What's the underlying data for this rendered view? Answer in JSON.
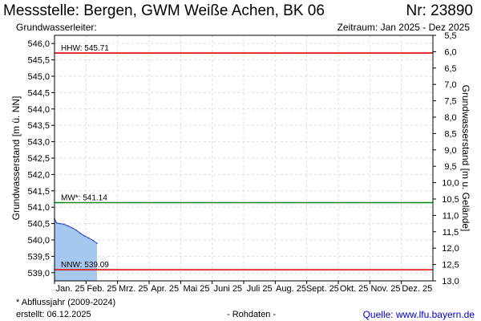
{
  "header": {
    "title": "Messstelle: Bergen, GWM Weiße Achen, BK 06",
    "number": "Nr: 23890",
    "subtitle_left": "Grundwasserleiter:",
    "subtitle_right": "Zeitraum: Jan 2025 - Dez 2025"
  },
  "footer": {
    "footnote": "* Abflussjahr (2009-2024)",
    "created": "erstellt:  06.12.2025",
    "raw_data": "- Rohdaten -",
    "source": "Quelle: www.lfu.bayern.de"
  },
  "colors": {
    "hhw": "#dd0000",
    "mw": "#008800",
    "nnw": "#dd0000",
    "series_line": "#2244cc",
    "series_fill": "#a7c8ee",
    "grid": "#dddddd"
  },
  "chart_data": {
    "type": "area",
    "ylabel": "Grundwasserstand [m ü. NN]",
    "ylabel_right": "Grundwasserstand [m u. Gelände]",
    "ylim": [
      538.75,
      546.25
    ],
    "ylim_right": [
      13.0,
      5.5
    ],
    "y_ticks": [
      "546,0",
      "545,5",
      "545,0",
      "544,5",
      "544,0",
      "543,5",
      "543,0",
      "542,5",
      "542,0",
      "541,5",
      "541,0",
      "540,5",
      "540,0",
      "539,5",
      "539,0"
    ],
    "y_ticks_right": [
      "5,5",
      "6,0",
      "6,5",
      "7,0",
      "7,5",
      "8,0",
      "8,5",
      "9,0",
      "9,5",
      "10,0",
      "10,5",
      "11,0",
      "11,5",
      "12,0",
      "12,5",
      "13,0"
    ],
    "x_ticks": [
      "Jan. 25",
      "Feb. 25",
      "Mrz. 25",
      "Apr. 25",
      "Mai 25",
      "Juni 25",
      "Juli 25",
      "Aug. 25",
      "Sept. 25",
      "Okt. 25",
      "Nov. 25",
      "Dez. 25"
    ],
    "reference_lines": [
      {
        "label": "HHW: 545.71",
        "value": 545.71
      },
      {
        "label": "MW*: 541.14",
        "value": 541.14
      },
      {
        "label": "NNW: 539.09",
        "value": 539.09
      }
    ],
    "series": [
      {
        "x": [
          "2025-01-01",
          "2025-01-03",
          "2025-01-06",
          "2025-01-10",
          "2025-01-14",
          "2025-01-18",
          "2025-01-22",
          "2025-01-26",
          "2025-01-30",
          "2025-02-03",
          "2025-02-07",
          "2025-02-11"
        ],
        "values": [
          540.65,
          540.52,
          540.5,
          540.48,
          540.43,
          540.37,
          540.3,
          540.2,
          540.12,
          540.06,
          539.99,
          539.9
        ]
      }
    ]
  }
}
